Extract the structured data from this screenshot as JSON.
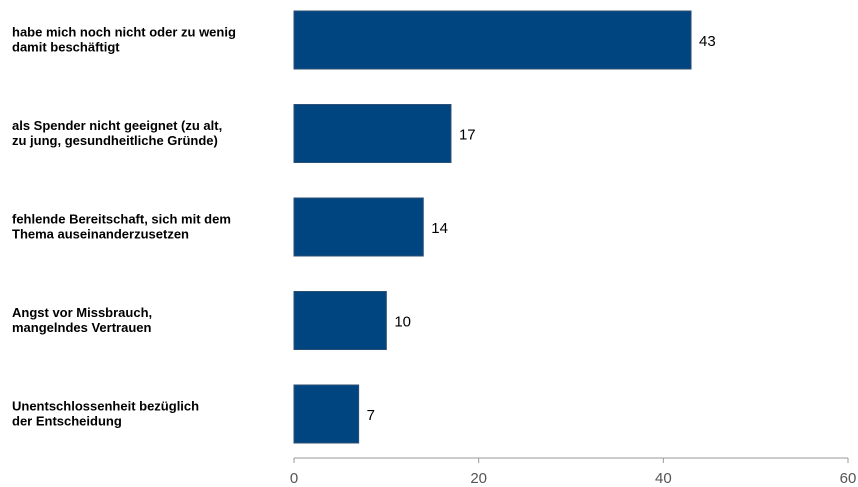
{
  "chart_data": {
    "type": "bar",
    "orientation": "horizontal",
    "categories": [
      [
        "habe mich noch nicht oder zu wenig",
        "damit beschäftigt"
      ],
      [
        "als Spender nicht geeignet (zu alt,",
        "zu jung, gesundheitliche Gründe)"
      ],
      [
        "fehlende Bereitschaft, sich mit dem",
        "Thema auseinanderzusetzen"
      ],
      [
        "Angst vor Missbrauch,",
        "mangelndes Vertrauen"
      ],
      [
        "Unentschlossenheit bezüglich",
        "der Entscheidung"
      ]
    ],
    "values": [
      43,
      17,
      14,
      10,
      7
    ],
    "xlim": [
      0,
      60
    ],
    "xticks": [
      0,
      20,
      40,
      60
    ],
    "grid": false,
    "title": "",
    "xlabel": "",
    "ylabel": "",
    "colors": {
      "bar": "#00457f",
      "axis": "#9a9a9a"
    }
  }
}
